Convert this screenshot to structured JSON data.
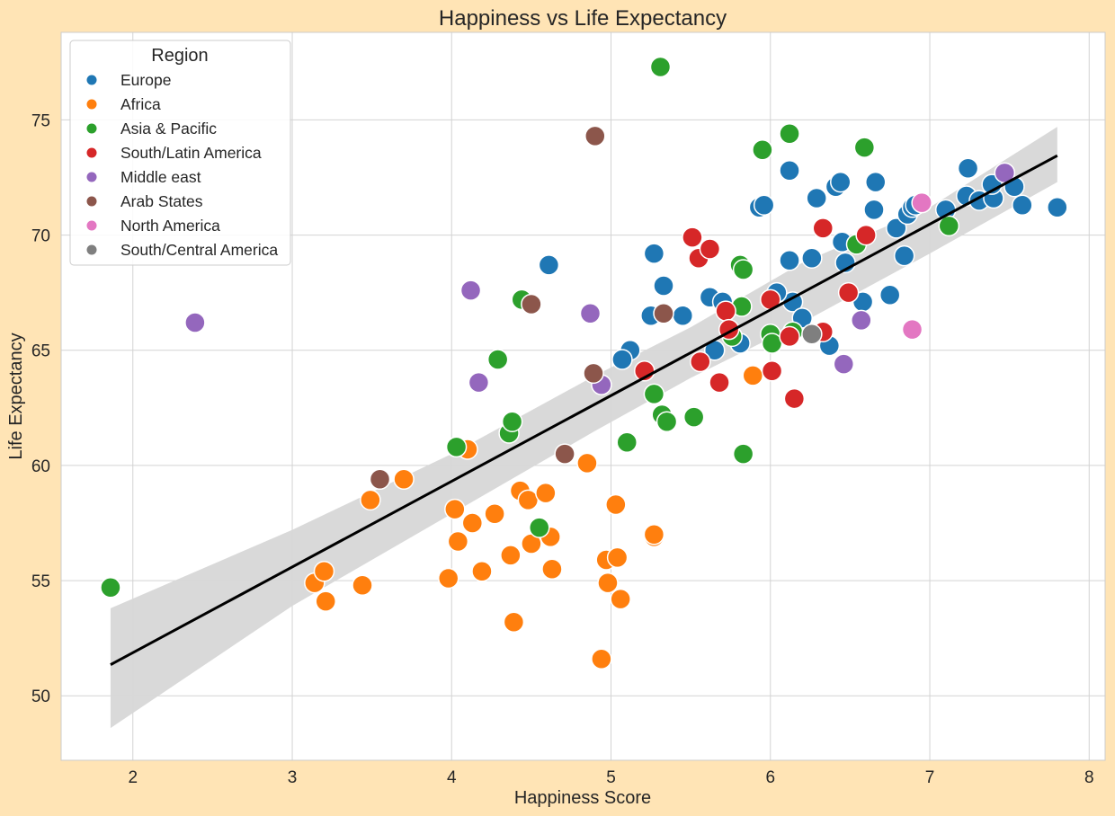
{
  "chart_data": {
    "type": "scatter",
    "title": "Happiness vs Life Expectancy",
    "xlabel": "Happiness Score",
    "ylabel": "Life Expectancy",
    "xlim": [
      1.55,
      8.1
    ],
    "ylim": [
      47.2,
      78.8
    ],
    "xticks": [
      2,
      3,
      4,
      5,
      6,
      7,
      8
    ],
    "yticks": [
      50,
      55,
      60,
      65,
      70,
      75
    ],
    "grid": true,
    "legend": {
      "title": "Region",
      "placement": "top-left"
    },
    "series": [
      {
        "name": "Europe",
        "color": "#1f77b4",
        "points": [
          [
            4.61,
            68.7
          ],
          [
            5.27,
            69.2
          ],
          [
            5.33,
            67.8
          ],
          [
            5.12,
            65.0
          ],
          [
            5.07,
            64.6
          ],
          [
            5.25,
            66.5
          ],
          [
            5.45,
            66.5
          ],
          [
            5.62,
            67.3
          ],
          [
            5.65,
            65.0
          ],
          [
            5.7,
            67.1
          ],
          [
            5.81,
            65.3
          ],
          [
            5.93,
            71.2
          ],
          [
            5.96,
            71.3
          ],
          [
            6.12,
            72.8
          ],
          [
            6.12,
            68.9
          ],
          [
            6.14,
            67.1
          ],
          [
            6.04,
            67.5
          ],
          [
            6.2,
            66.4
          ],
          [
            6.26,
            69.0
          ],
          [
            6.29,
            71.6
          ],
          [
            6.37,
            65.2
          ],
          [
            6.41,
            72.1
          ],
          [
            6.44,
            72.3
          ],
          [
            6.45,
            69.7
          ],
          [
            6.47,
            68.8
          ],
          [
            6.58,
            67.1
          ],
          [
            6.65,
            71.1
          ],
          [
            6.66,
            72.3
          ],
          [
            6.75,
            67.4
          ],
          [
            6.79,
            70.3
          ],
          [
            6.84,
            69.1
          ],
          [
            6.86,
            70.9
          ],
          [
            6.89,
            71.2
          ],
          [
            6.91,
            71.3
          ],
          [
            7.1,
            71.1
          ],
          [
            7.23,
            71.7
          ],
          [
            7.24,
            72.9
          ],
          [
            7.31,
            71.5
          ],
          [
            7.4,
            71.6
          ],
          [
            7.39,
            72.2
          ],
          [
            7.53,
            72.1
          ],
          [
            7.58,
            71.3
          ],
          [
            7.8,
            71.2
          ]
        ]
      },
      {
        "name": "Africa",
        "color": "#ff7f0e",
        "points": [
          [
            3.14,
            54.9
          ],
          [
            3.2,
            55.4
          ],
          [
            3.21,
            54.1
          ],
          [
            3.44,
            54.8
          ],
          [
            3.49,
            58.5
          ],
          [
            3.7,
            59.4
          ],
          [
            3.98,
            55.1
          ],
          [
            4.02,
            58.1
          ],
          [
            4.04,
            56.7
          ],
          [
            4.1,
            60.7
          ],
          [
            4.13,
            57.5
          ],
          [
            4.19,
            55.4
          ],
          [
            4.27,
            57.9
          ],
          [
            4.37,
            56.1
          ],
          [
            4.39,
            53.2
          ],
          [
            4.43,
            58.9
          ],
          [
            4.48,
            58.5
          ],
          [
            4.5,
            56.6
          ],
          [
            4.59,
            58.8
          ],
          [
            4.62,
            56.9
          ],
          [
            4.63,
            55.5
          ],
          [
            4.85,
            60.1
          ],
          [
            4.94,
            51.6
          ],
          [
            4.97,
            55.9
          ],
          [
            4.98,
            54.9
          ],
          [
            5.03,
            58.3
          ],
          [
            5.04,
            56.0
          ],
          [
            5.06,
            54.2
          ],
          [
            5.27,
            56.9
          ],
          [
            5.27,
            57.0
          ],
          [
            5.89,
            63.9
          ]
        ]
      },
      {
        "name": "Asia & Pacific",
        "color": "#2ca02c",
        "points": [
          [
            1.86,
            54.7
          ],
          [
            4.03,
            60.8
          ],
          [
            4.29,
            64.6
          ],
          [
            4.36,
            61.4
          ],
          [
            4.38,
            61.9
          ],
          [
            4.44,
            67.2
          ],
          [
            4.55,
            57.3
          ],
          [
            5.1,
            61.0
          ],
          [
            5.27,
            63.1
          ],
          [
            5.31,
            77.3
          ],
          [
            5.32,
            62.2
          ],
          [
            5.35,
            61.9
          ],
          [
            5.52,
            62.1
          ],
          [
            5.76,
            65.6
          ],
          [
            5.81,
            68.7
          ],
          [
            5.82,
            66.9
          ],
          [
            5.83,
            68.5
          ],
          [
            5.83,
            60.5
          ],
          [
            5.95,
            73.7
          ],
          [
            6.0,
            65.7
          ],
          [
            6.01,
            65.3
          ],
          [
            6.12,
            74.4
          ],
          [
            6.14,
            65.8
          ],
          [
            6.54,
            69.6
          ],
          [
            6.59,
            73.8
          ],
          [
            7.12,
            70.4
          ]
        ]
      },
      {
        "name": "South/Latin America",
        "color": "#d62728",
        "points": [
          [
            5.21,
            64.1
          ],
          [
            5.51,
            69.9
          ],
          [
            5.55,
            69.0
          ],
          [
            5.56,
            64.5
          ],
          [
            5.62,
            69.4
          ],
          [
            5.68,
            63.6
          ],
          [
            5.72,
            66.7
          ],
          [
            5.74,
            65.9
          ],
          [
            6.0,
            67.2
          ],
          [
            6.01,
            64.1
          ],
          [
            6.12,
            65.6
          ],
          [
            6.15,
            62.9
          ],
          [
            6.33,
            70.3
          ],
          [
            6.33,
            65.8
          ],
          [
            6.49,
            67.5
          ],
          [
            6.6,
            70.0
          ]
        ]
      },
      {
        "name": "Middle east",
        "color": "#9467bd",
        "points": [
          [
            2.39,
            66.2
          ],
          [
            4.12,
            67.6
          ],
          [
            4.17,
            63.6
          ],
          [
            4.87,
            66.6
          ],
          [
            4.94,
            63.5
          ],
          [
            6.46,
            64.4
          ],
          [
            6.57,
            66.3
          ],
          [
            7.47,
            72.7
          ]
        ]
      },
      {
        "name": "Arab States",
        "color": "#8c564b",
        "points": [
          [
            3.55,
            59.4
          ],
          [
            4.5,
            67.0
          ],
          [
            4.71,
            60.5
          ],
          [
            4.89,
            64.0
          ],
          [
            4.9,
            74.3
          ],
          [
            5.33,
            66.6
          ]
        ]
      },
      {
        "name": "North America",
        "color": "#e377c2",
        "points": [
          [
            6.89,
            65.9
          ],
          [
            6.95,
            71.4
          ]
        ]
      },
      {
        "name": "South/Central America",
        "color": "#7f7f7f",
        "points": [
          [
            6.26,
            65.7
          ]
        ]
      }
    ],
    "regression": {
      "color": "#000000",
      "line": [
        [
          1.86,
          51.35
        ],
        [
          7.8,
          73.45
        ]
      ],
      "ci_upper": [
        [
          1.86,
          53.8
        ],
        [
          3.0,
          57.2
        ],
        [
          4.0,
          60.5
        ],
        [
          4.9,
          63.9
        ],
        [
          5.5,
          66.0
        ],
        [
          6.2,
          68.8
        ],
        [
          7.0,
          71.2
        ],
        [
          7.8,
          74.7
        ]
      ],
      "ci_lower": [
        [
          1.86,
          48.6
        ],
        [
          3.0,
          53.9
        ],
        [
          4.0,
          57.9
        ],
        [
          4.9,
          61.5
        ],
        [
          5.5,
          63.8
        ],
        [
          6.2,
          66.2
        ],
        [
          7.0,
          69.2
        ],
        [
          7.8,
          72.3
        ]
      ]
    }
  }
}
